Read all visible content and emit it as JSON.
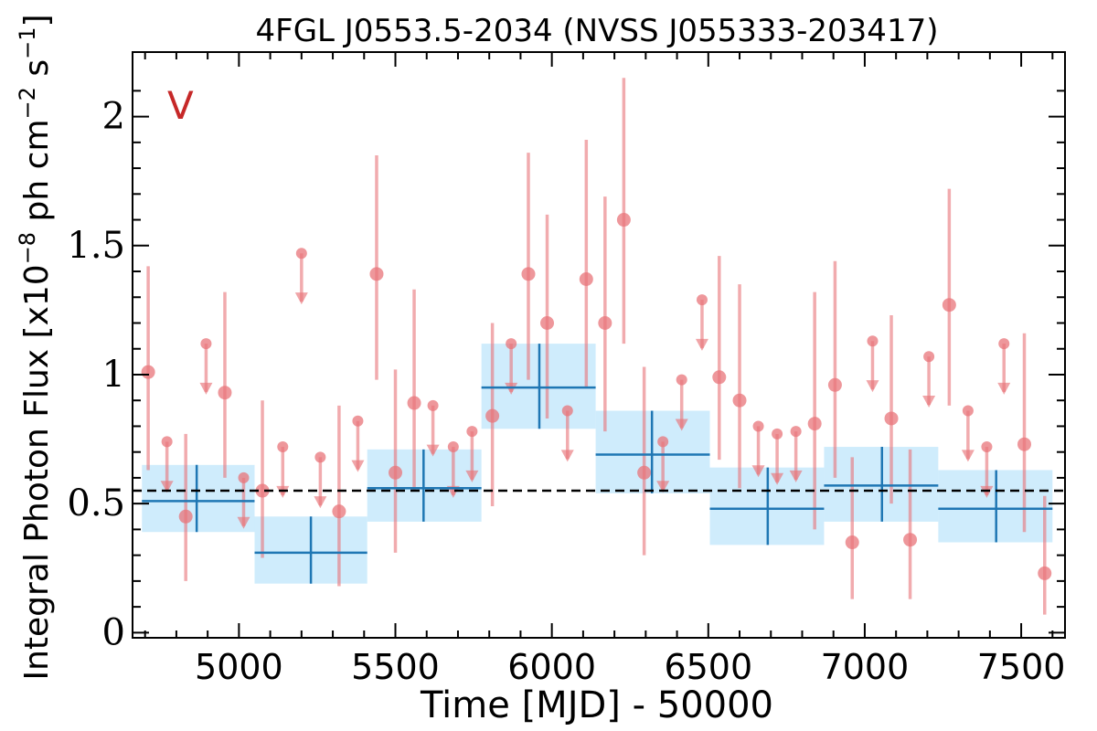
{
  "chart_data": {
    "type": "scatter",
    "title": "4FGL J0553.5-2034 (NVSS J055333-203417)",
    "xlabel": "Time [MJD] - 50000",
    "ylabel": "Integral Photon Flux [x10",
    "ylabel_sup1": "−8",
    "ylabel_mid": " ph cm",
    "ylabel_sup2": "−2",
    "ylabel_end": " s",
    "ylabel_sup3": "−1",
    "ylabel_close": "]",
    "panel_label": "V",
    "xlim": [
      4660,
      7640
    ],
    "ylim": [
      -0.02,
      2.25
    ],
    "xticks": [
      5000,
      5500,
      6000,
      6500,
      7000,
      7500
    ],
    "yticks": [
      0,
      0.5,
      1,
      1.5,
      2
    ],
    "ytick_labels": [
      "0",
      "0.5",
      "1",
      "1.5",
      "2"
    ],
    "mean_flux": 0.55,
    "colors": {
      "points": "#e8747a",
      "bins_line": "#1f77b4",
      "bins_band": "#bfe6fb",
      "mean_line": "#000000"
    },
    "detections": [
      {
        "x": 4710,
        "y": 1.01,
        "ylo": 0.63,
        "yhi": 1.42
      },
      {
        "x": 4830,
        "y": 0.45,
        "ylo": 0.2,
        "yhi": 0.77
      },
      {
        "x": 4955,
        "y": 0.93,
        "ylo": 0.6,
        "yhi": 1.32
      },
      {
        "x": 5075,
        "y": 0.55,
        "ylo": 0.29,
        "yhi": 0.9
      },
      {
        "x": 5320,
        "y": 0.47,
        "ylo": 0.18,
        "yhi": 0.88
      },
      {
        "x": 5440,
        "y": 1.39,
        "ylo": 0.98,
        "yhi": 1.85
      },
      {
        "x": 5500,
        "y": 0.62,
        "ylo": 0.31,
        "yhi": 1.02
      },
      {
        "x": 5560,
        "y": 0.89,
        "ylo": 0.55,
        "yhi": 1.33
      },
      {
        "x": 5810,
        "y": 0.84,
        "ylo": 0.49,
        "yhi": 1.2
      },
      {
        "x": 5925,
        "y": 1.39,
        "ylo": 0.98,
        "yhi": 1.86
      },
      {
        "x": 5985,
        "y": 1.2,
        "ylo": 0.83,
        "yhi": 1.62
      },
      {
        "x": 6110,
        "y": 1.37,
        "ylo": 0.95,
        "yhi": 1.91
      },
      {
        "x": 6170,
        "y": 1.2,
        "ylo": 0.78,
        "yhi": 1.69
      },
      {
        "x": 6230,
        "y": 1.6,
        "ylo": 1.12,
        "yhi": 2.15
      },
      {
        "x": 6295,
        "y": 0.62,
        "ylo": 0.3,
        "yhi": 1.03
      },
      {
        "x": 6535,
        "y": 0.99,
        "ylo": 0.67,
        "yhi": 1.46
      },
      {
        "x": 6600,
        "y": 0.9,
        "ylo": 0.56,
        "yhi": 1.35
      },
      {
        "x": 6840,
        "y": 0.81,
        "ylo": 0.4,
        "yhi": 1.32
      },
      {
        "x": 6905,
        "y": 0.96,
        "ylo": 0.6,
        "yhi": 1.44
      },
      {
        "x": 6960,
        "y": 0.35,
        "ylo": 0.13,
        "yhi": 0.68
      },
      {
        "x": 7085,
        "y": 0.83,
        "ylo": 0.5,
        "yhi": 1.23
      },
      {
        "x": 7145,
        "y": 0.36,
        "ylo": 0.13,
        "yhi": 0.71
      },
      {
        "x": 7270,
        "y": 1.27,
        "ylo": 0.88,
        "yhi": 1.72
      },
      {
        "x": 7510,
        "y": 0.73,
        "ylo": 0.39,
        "yhi": 1.16
      },
      {
        "x": 7575,
        "y": 0.23,
        "ylo": 0.07,
        "yhi": 0.53
      }
    ],
    "upper_limits": [
      {
        "x": 4770,
        "y": 0.74
      },
      {
        "x": 4895,
        "y": 1.12
      },
      {
        "x": 5015,
        "y": 0.6
      },
      {
        "x": 5140,
        "y": 0.72
      },
      {
        "x": 5200,
        "y": 1.47
      },
      {
        "x": 5260,
        "y": 0.68
      },
      {
        "x": 5380,
        "y": 0.82
      },
      {
        "x": 5620,
        "y": 0.88
      },
      {
        "x": 5685,
        "y": 0.72
      },
      {
        "x": 5745,
        "y": 0.78
      },
      {
        "x": 5870,
        "y": 1.12
      },
      {
        "x": 6050,
        "y": 0.86
      },
      {
        "x": 6355,
        "y": 0.74
      },
      {
        "x": 6415,
        "y": 0.98
      },
      {
        "x": 6480,
        "y": 1.29
      },
      {
        "x": 6660,
        "y": 0.8
      },
      {
        "x": 6720,
        "y": 0.77
      },
      {
        "x": 6780,
        "y": 0.78
      },
      {
        "x": 7025,
        "y": 1.13
      },
      {
        "x": 7205,
        "y": 1.07
      },
      {
        "x": 7330,
        "y": 0.86
      },
      {
        "x": 7390,
        "y": 0.72
      },
      {
        "x": 7445,
        "y": 1.12
      }
    ],
    "bins": [
      {
        "x0": 4690,
        "x1": 5050,
        "y": 0.51,
        "ylo": 0.39,
        "yhi": 0.65,
        "xc": 4865
      },
      {
        "x0": 5050,
        "x1": 5410,
        "y": 0.31,
        "ylo": 0.19,
        "yhi": 0.45,
        "xc": 5230
      },
      {
        "x0": 5410,
        "x1": 5775,
        "y": 0.56,
        "ylo": 0.43,
        "yhi": 0.71,
        "xc": 5590
      },
      {
        "x0": 5775,
        "x1": 6140,
        "y": 0.95,
        "ylo": 0.79,
        "yhi": 1.12,
        "xc": 5960
      },
      {
        "x0": 6140,
        "x1": 6505,
        "y": 0.69,
        "ylo": 0.54,
        "yhi": 0.86,
        "xc": 6320
      },
      {
        "x0": 6505,
        "x1": 6870,
        "y": 0.48,
        "ylo": 0.34,
        "yhi": 0.64,
        "xc": 6690
      },
      {
        "x0": 6870,
        "x1": 7235,
        "y": 0.57,
        "ylo": 0.43,
        "yhi": 0.72,
        "xc": 7055
      },
      {
        "x0": 7235,
        "x1": 7600,
        "y": 0.48,
        "ylo": 0.35,
        "yhi": 0.63,
        "xc": 7420
      }
    ]
  }
}
